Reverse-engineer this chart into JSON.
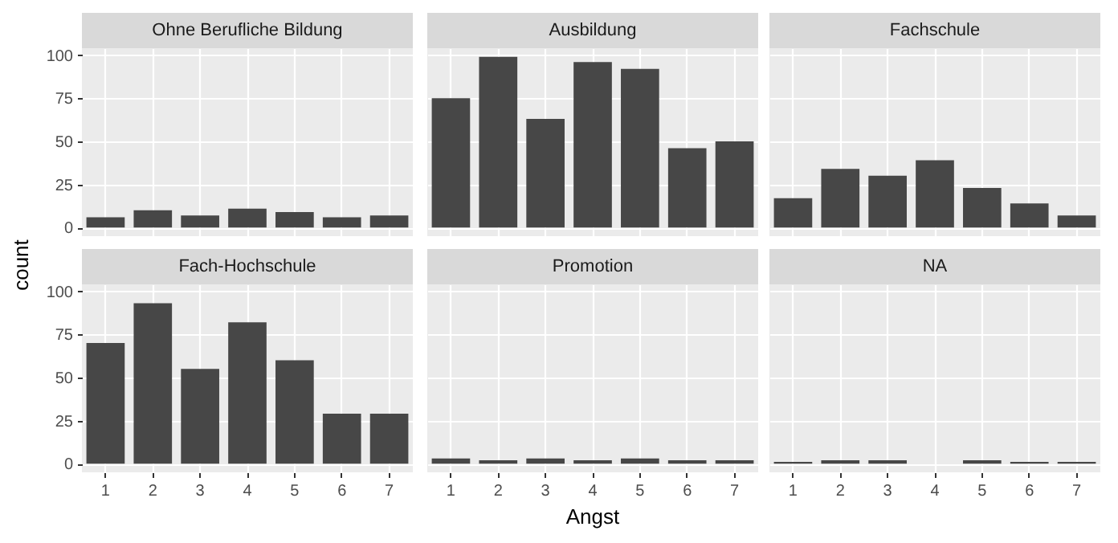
{
  "chart_data": [
    {
      "type": "bar",
      "title": "Ohne Berufliche Bildung",
      "ylabel": "count",
      "categories": [
        "1",
        "2",
        "3",
        "4",
        "5",
        "6",
        "7"
      ],
      "values": [
        6,
        10,
        7,
        11,
        9,
        6,
        7
      ],
      "color": "#474747",
      "ylim": [
        -5,
        104
      ],
      "yticks": [
        0,
        25,
        50,
        75,
        100
      ],
      "grid": true,
      "tick_labels": "y"
    },
    {
      "type": "bar",
      "title": "Ausbildung",
      "categories": [
        "1",
        "2",
        "3",
        "4",
        "5",
        "6",
        "7"
      ],
      "values": [
        75,
        99,
        63,
        96,
        92,
        46,
        50
      ],
      "color": "#474747",
      "ylim": [
        -5,
        104
      ],
      "yticks": [
        0,
        25,
        50,
        75,
        100
      ],
      "grid": true,
      "tick_labels": false
    },
    {
      "type": "bar",
      "title": "Fachschule",
      "categories": [
        "1",
        "2",
        "3",
        "4",
        "5",
        "6",
        "7"
      ],
      "values": [
        17,
        34,
        30,
        39,
        23,
        14,
        7
      ],
      "color": "#474747",
      "ylim": [
        -5,
        104
      ],
      "yticks": [
        0,
        25,
        50,
        75,
        100
      ],
      "grid": true,
      "tick_labels": false
    },
    {
      "type": "bar",
      "title": "Fach-Hochschule",
      "categories": [
        "1",
        "2",
        "3",
        "4",
        "5",
        "6",
        "7"
      ],
      "values": [
        70,
        93,
        55,
        82,
        60,
        29,
        29
      ],
      "color": "#474747",
      "ylim": [
        -5,
        104
      ],
      "yticks": [
        0,
        25,
        50,
        75,
        100
      ],
      "grid": true
    },
    {
      "type": "bar",
      "title": "Promotion",
      "xlabel": "Angst",
      "categories": [
        "1",
        "2",
        "3",
        "4",
        "5",
        "6",
        "7"
      ],
      "values": [
        3,
        2,
        3,
        2,
        3,
        2,
        2
      ],
      "color": "#474747",
      "ylim": [
        -5,
        104
      ],
      "yticks": [
        0,
        25,
        50,
        75,
        100
      ],
      "grid": true,
      "tick_labels": "x"
    },
    {
      "type": "bar",
      "title": "NA",
      "categories": [
        "1",
        "2",
        "3",
        "4",
        "5",
        "6",
        "7"
      ],
      "values": [
        1,
        2,
        2,
        null,
        2,
        1,
        1
      ],
      "color": "#474747",
      "ylim": [
        -5,
        104
      ],
      "yticks": [
        0,
        25,
        50,
        75,
        100
      ],
      "grid": true,
      "tick_labels": "x"
    }
  ]
}
